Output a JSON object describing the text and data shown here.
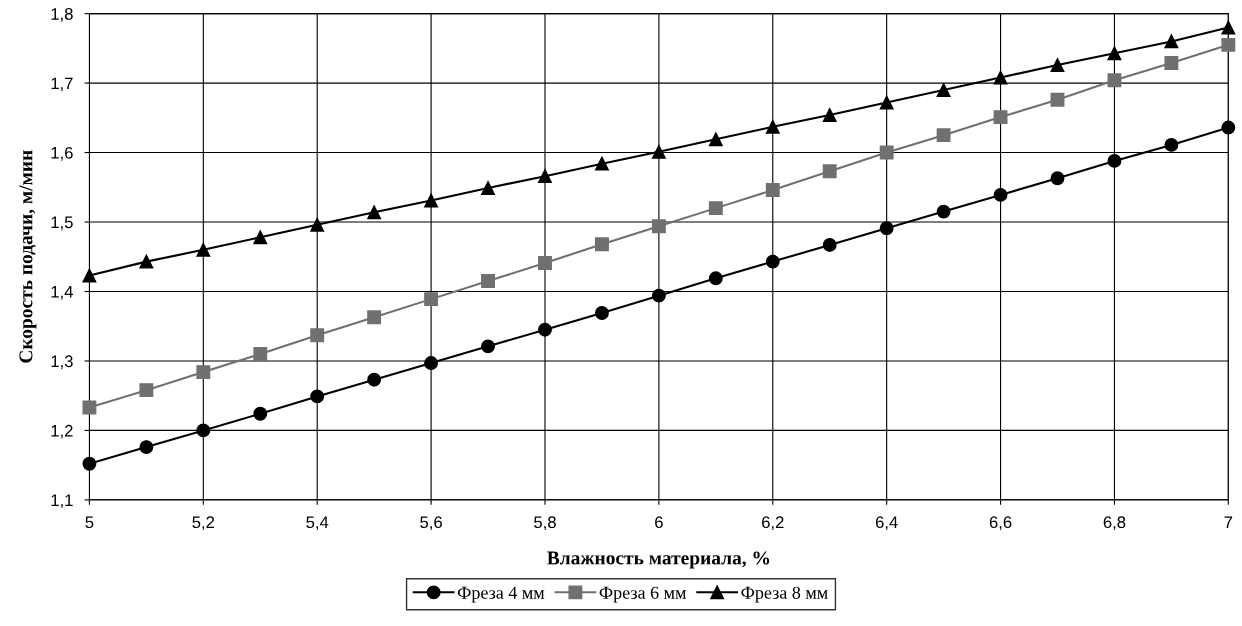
{
  "chart_data": {
    "type": "line",
    "xlabel": "Влажность материала, %",
    "ylabel": "Скорость подачи, м/мин",
    "x": [
      5,
      5.1,
      5.2,
      5.3,
      5.4,
      5.5,
      5.6,
      5.7,
      5.8,
      5.9,
      6,
      6.1,
      6.2,
      6.3,
      6.4,
      6.5,
      6.6,
      6.7,
      6.8,
      6.9,
      7
    ],
    "series": [
      {
        "name": "Фреза 4 мм",
        "color": "#000000",
        "marker": "circle",
        "values": [
          1.152,
          1.176,
          1.2,
          1.224,
          1.249,
          1.273,
          1.297,
          1.321,
          1.345,
          1.369,
          1.394,
          1.419,
          1.443,
          1.467,
          1.491,
          1.515,
          1.539,
          1.563,
          1.588,
          1.611,
          1.636
        ]
      },
      {
        "name": "Фреза 6 мм",
        "color": "#707070",
        "marker": "square",
        "values": [
          1.233,
          1.258,
          1.284,
          1.31,
          1.337,
          1.363,
          1.389,
          1.415,
          1.441,
          1.468,
          1.494,
          1.52,
          1.546,
          1.573,
          1.6,
          1.625,
          1.651,
          1.676,
          1.704,
          1.729,
          1.755
        ]
      },
      {
        "name": "Фреза 8 мм",
        "color": "#000000",
        "marker": "triangle",
        "values": [
          1.423,
          1.443,
          1.46,
          1.478,
          1.496,
          1.514,
          1.531,
          1.549,
          1.566,
          1.584,
          1.601,
          1.619,
          1.637,
          1.654,
          1.672,
          1.69,
          1.708,
          1.726,
          1.743,
          1.76,
          1.78
        ]
      }
    ],
    "xlim": [
      5,
      7
    ],
    "xticks": [
      5,
      {
        "value": 5.2,
        "label": "5,2"
      },
      {
        "value": 5.4,
        "label": "5,4"
      },
      {
        "value": 5.6,
        "label": "5,6"
      },
      {
        "value": 5.8,
        "label": "5,8"
      },
      6,
      {
        "value": 6.2,
        "label": "6,2"
      },
      {
        "value": 6.4,
        "label": "6,4"
      },
      {
        "value": 6.6,
        "label": "6,6"
      },
      {
        "value": 6.8,
        "label": "6,8"
      },
      7
    ],
    "ylim": [
      1.1,
      1.8
    ],
    "yticks": [
      {
        "value": 1.1,
        "label": "1,1"
      },
      {
        "value": 1.2,
        "label": "1,2"
      },
      {
        "value": 1.3,
        "label": "1,3"
      },
      {
        "value": 1.4,
        "label": "1,4"
      },
      {
        "value": 1.5,
        "label": "1,5"
      },
      {
        "value": 1.6,
        "label": "1,6"
      },
      {
        "value": 1.7,
        "label": "1,7"
      },
      {
        "value": 1.8,
        "label": "1,8"
      }
    ],
    "grid": true,
    "legend": "bottom",
    "line_style": "solid"
  }
}
